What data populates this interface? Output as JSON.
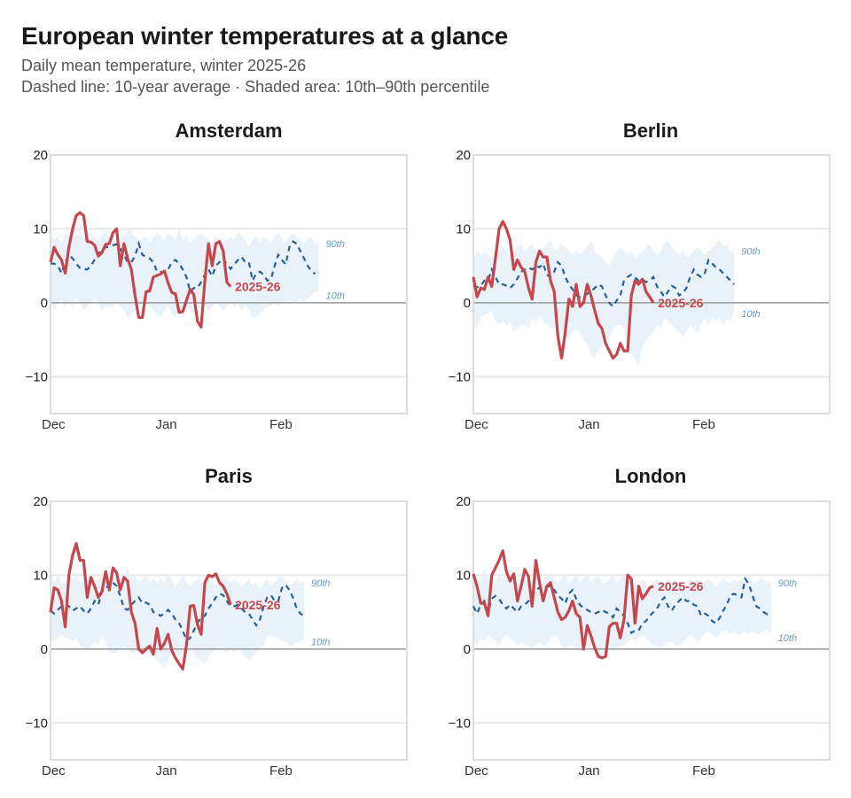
{
  "header": {
    "title": "European winter temperatures at a glance",
    "subtitle": "Daily mean temperature, winter 2025-26",
    "note": "Dashed line: 10-year average · Shaded area: 10th–90th percentile"
  },
  "colors": {
    "current": "#c4474d",
    "average": "#2b5f91",
    "band": "#e9f2f8",
    "band_label": "#6b9bc1",
    "zero_line": "#999999",
    "grid": "#e8e8e8",
    "frame": "#dddddd"
  },
  "chart_data": [
    {
      "type": "line",
      "title": "Amsterdam",
      "xlabel": "",
      "ylabel": "",
      "ylim": [
        -15,
        20
      ],
      "yticks": [
        20,
        10,
        0,
        -10
      ],
      "ytick_labels": [
        "20",
        "10",
        "0",
        "−10"
      ],
      "xticks": [
        {
          "day": 0,
          "label": "Dec"
        },
        {
          "day": 31,
          "label": "Jan"
        },
        {
          "day": 62,
          "label": "Feb"
        }
      ],
      "xlim": [
        0,
        97
      ],
      "band_labels": {
        "upper": "90th",
        "lower": "10th"
      },
      "series_label": "2025-26",
      "current": [
        5.5,
        7.5,
        6.5,
        5.8,
        4,
        7.5,
        10,
        11.8,
        12.2,
        11.8,
        8.3,
        8.2,
        7.8,
        6.3,
        6.8,
        7.9,
        8,
        9.5,
        10,
        5,
        8,
        6,
        4.5,
        1,
        -2,
        -2,
        1.5,
        1.6,
        3.5,
        3.7,
        3.9,
        4.3,
        2.7,
        1.4,
        1.2,
        -1.3,
        -1.2,
        0.3,
        1.8,
        1.1,
        -2.5,
        -3.3,
        3,
        8,
        5,
        8,
        8.3,
        7,
        2.8,
        2.2
      ],
      "average": [
        5.3,
        5.3,
        5,
        4,
        5.5,
        6.5,
        6,
        5.3,
        4.7,
        4.6,
        4.5,
        5,
        5.8,
        6.5,
        7.3,
        7.5,
        7.6,
        7.8,
        7.9,
        7.3,
        6.5,
        5.5,
        5.5,
        6.3,
        8,
        6.5,
        6.2,
        6,
        5.5,
        4.2,
        4.2,
        4.1,
        4.5,
        5.5,
        5.8,
        5.3,
        4.5,
        3.5,
        1.5,
        2,
        2,
        2.8,
        3.8,
        4.5,
        3.6,
        5,
        5.5,
        6,
        5.2,
        4.6,
        5.2,
        5.8,
        6.2,
        5.5,
        5.5,
        3,
        4,
        4.2,
        3.8,
        3,
        3.2,
        5,
        6.5,
        5.8,
        5.2,
        7.5,
        8.3,
        8,
        7,
        6,
        5,
        4.3,
        3.9
      ],
      "p90": [
        9.5,
        8.5,
        9,
        8,
        9,
        9.5,
        10,
        9,
        9.5,
        9,
        8.5,
        9,
        9,
        8.5,
        9,
        9.5,
        9,
        9.5,
        8,
        9,
        9,
        10,
        9.5,
        9,
        8.5,
        8.5,
        9,
        8,
        9,
        9.5,
        9,
        8.5,
        9.5,
        9,
        8.5,
        10,
        8.5,
        9,
        8,
        8.5,
        9,
        9.5,
        9,
        8.5,
        8,
        9,
        8.5,
        8,
        8.5,
        9,
        8.5,
        9.5,
        9,
        8.5,
        7.5,
        8.5,
        9,
        8,
        9,
        8.5,
        8,
        9,
        9.5,
        8.5,
        8,
        9,
        9.5,
        9,
        8.5,
        8,
        8.5,
        9,
        8,
        8
      ],
      "p10": [
        0.5,
        -1,
        0,
        0.5,
        -0.5,
        0,
        -0.5,
        0.5,
        0,
        -1,
        -0.5,
        0,
        0.5,
        0,
        -1,
        -0.5,
        -0.5,
        -0.5,
        0,
        -0.5,
        -1,
        -2,
        -1.5,
        -1,
        -0.5,
        0,
        0,
        -0.5,
        -1,
        -1.5,
        -2,
        -1,
        -0.5,
        -1.5,
        -2,
        -1,
        -0.5,
        -0.5,
        -1,
        -1.5,
        -0.5,
        -1,
        -0.5,
        -1,
        -0.5,
        0,
        -0.5,
        -1,
        -0.5,
        0,
        -0.5,
        0,
        -1,
        -0.5,
        -1,
        -2,
        -2,
        -1.5,
        -1,
        -0.5,
        -0.5,
        0,
        -0.5,
        0,
        0,
        0.5,
        0,
        0,
        0.5,
        0,
        0.5,
        1,
        1.5,
        1.5
      ]
    },
    {
      "type": "line",
      "title": "Berlin",
      "xlabel": "",
      "ylabel": "",
      "ylim": [
        -15,
        20
      ],
      "yticks": [
        20,
        10,
        0,
        -10
      ],
      "ytick_labels": [
        "20",
        "10",
        "0",
        "−10"
      ],
      "xticks": [
        {
          "day": 0,
          "label": "Dec"
        },
        {
          "day": 31,
          "label": "Jan"
        },
        {
          "day": 62,
          "label": "Feb"
        }
      ],
      "xlim": [
        0,
        97
      ],
      "band_labels": {
        "upper": "90th",
        "lower": "10th"
      },
      "series_label": "2025-26",
      "current": [
        3.5,
        0.8,
        2,
        1.8,
        3.5,
        2.2,
        6,
        10,
        11,
        10,
        8.5,
        4.5,
        5.8,
        4.8,
        4.2,
        2,
        0.5,
        5.5,
        7,
        6.2,
        6.2,
        3,
        1.5,
        -4.5,
        -7.5,
        -4,
        0.5,
        -0.5,
        2.5,
        -0.5,
        0,
        2.5,
        1,
        -1,
        -2.8,
        -3.5,
        -5.5,
        -6.5,
        -7.5,
        -7,
        -5.5,
        -6.5,
        -6.5,
        1,
        3,
        2.5,
        3.2,
        1.5,
        0.8,
        0
      ],
      "average": [
        2.3,
        2.1,
        2.3,
        3,
        3,
        4.5,
        3.5,
        2.5,
        2.5,
        2.3,
        2,
        2.5,
        3.3,
        4.2,
        4.5,
        4.8,
        4.5,
        5,
        4.8,
        5.3,
        3.8,
        3.5,
        4.2,
        5.5,
        5,
        3.5,
        2.5,
        1.8,
        1,
        0.8,
        1,
        1.2,
        1.5,
        2,
        2.5,
        2.2,
        1,
        0,
        -0.5,
        0.3,
        1,
        3,
        3.5,
        3.8,
        3.4,
        3,
        3.2,
        2.8,
        3,
        3.5,
        2.2,
        1.5,
        0.8,
        1.5,
        2.3,
        2,
        1,
        1.3,
        2,
        3.5,
        4.5,
        3.8,
        3.5,
        4,
        5.8,
        5.3,
        4.8,
        4.5,
        4,
        3.5,
        3,
        2.5
      ],
      "p90": [
        6,
        7,
        6.5,
        7,
        6.5,
        6,
        7,
        8,
        7.5,
        7,
        6.5,
        7,
        7.5,
        8,
        7,
        7.5,
        8,
        7,
        7.5,
        7,
        8,
        8.5,
        7,
        7.5,
        8,
        7.5,
        7,
        6.5,
        7,
        6.5,
        7,
        7.5,
        8.5,
        7,
        6.5,
        6,
        5.5,
        5,
        6,
        7,
        7.5,
        7,
        6.5,
        7,
        6,
        6.5,
        7,
        7.5,
        8,
        7,
        6.5,
        7,
        8,
        8.5,
        7.5,
        7,
        6.5,
        7,
        6,
        6.5,
        7,
        7.5,
        7,
        6.5,
        7,
        7.5,
        8,
        8.5,
        7.5,
        8,
        7,
        7
      ],
      "p10": [
        -3,
        -3.5,
        -2,
        -1.5,
        -1.5,
        -1,
        -2.5,
        -3,
        -2.5,
        -3,
        -2.5,
        -4,
        -3.5,
        -3,
        -3,
        -3.5,
        -2,
        -2.5,
        -2,
        -2.5,
        -3,
        -3.5,
        -3.5,
        -3,
        -4,
        -4.5,
        -5,
        -4,
        -3.5,
        -4,
        -5,
        -5.5,
        -7,
        -7.5,
        -6.5,
        -6,
        -5,
        -5,
        -3.5,
        -3,
        -3,
        -3.5,
        -7,
        -7,
        -7.5,
        -8.5,
        -6,
        -5,
        -4.5,
        -4,
        -3,
        -3.5,
        -2,
        -2.5,
        -3,
        -3.5,
        -4,
        -4.5,
        -4,
        -3,
        -3.5,
        -4,
        -3,
        -2,
        -3,
        -2,
        -2.5,
        -2,
        -3,
        -2,
        -2.5,
        -1
      ]
    },
    {
      "type": "line",
      "title": "Paris",
      "xlabel": "",
      "ylabel": "",
      "ylim": [
        -15,
        20
      ],
      "yticks": [
        20,
        10,
        0,
        -10
      ],
      "ytick_labels": [
        "20",
        "10",
        "0",
        "−10"
      ],
      "xticks": [
        {
          "day": 0,
          "label": "Dec"
        },
        {
          "day": 31,
          "label": "Jan"
        },
        {
          "day": 62,
          "label": "Feb"
        }
      ],
      "xlim": [
        0,
        97
      ],
      "band_labels": {
        "upper": "90th",
        "lower": "10th"
      },
      "series_label": "2025-26",
      "current": [
        5,
        8.3,
        8,
        6.5,
        3,
        10,
        12.7,
        14.3,
        12,
        12,
        7,
        9.7,
        8.5,
        7,
        7.8,
        10.5,
        8,
        11,
        10.3,
        8,
        9.7,
        9.2,
        5,
        3.5,
        0,
        -0.5,
        0,
        0.4,
        -0.7,
        2.8,
        0,
        0.8,
        2,
        -0.2,
        -1.2,
        -2,
        -2.7,
        0.5,
        5.8,
        5.9,
        3.3,
        2,
        9,
        10,
        9.8,
        10.2,
        9,
        8.5,
        7.5,
        6
      ],
      "average": [
        5.2,
        4.8,
        5.3,
        5.8,
        6,
        5.8,
        5.2,
        5.5,
        5.8,
        5.2,
        4.8,
        5.5,
        6.5,
        6,
        7.8,
        8,
        9,
        9,
        8.5,
        7.2,
        5.5,
        5.3,
        6,
        6.5,
        7,
        6.2,
        6.3,
        6,
        5,
        4.8,
        4.5,
        4.8,
        5.3,
        4.8,
        4,
        3.5,
        2.5,
        1.2,
        1.5,
        2.5,
        3.5,
        4.3,
        4.5,
        5.5,
        6.2,
        7,
        7.5,
        7.3,
        6.5,
        5.8,
        5.8,
        6,
        5.5,
        5,
        4.8,
        4,
        3.2,
        4,
        5.8,
        7,
        7.3,
        6.5,
        6.5,
        8.3,
        8.7,
        8,
        7,
        5.5,
        4.8,
        4.5
      ],
      "p90": [
        11,
        9,
        10,
        9,
        9,
        10,
        9.5,
        10,
        9,
        9.5,
        10,
        9.5,
        9,
        9.5,
        10,
        9,
        10.5,
        10,
        10,
        9.5,
        10,
        11,
        9.5,
        10,
        9,
        9.5,
        10,
        9,
        9.5,
        9,
        9.5,
        9,
        10,
        9.5,
        8.5,
        9,
        10,
        9,
        8.5,
        9,
        9.5,
        9,
        9.5,
        10,
        9,
        8.5,
        9,
        10,
        9.5,
        9,
        9.5,
        9,
        8.5,
        9,
        9.5,
        8.5,
        9,
        8,
        9,
        9.5,
        8.5,
        9,
        9.5,
        10,
        9,
        8.5,
        9,
        9.5,
        9,
        9
      ],
      "p10": [
        1.5,
        1,
        1.5,
        2,
        1.5,
        1.5,
        1,
        1.5,
        0.5,
        0,
        0,
        0.5,
        1,
        0.5,
        1.5,
        1,
        -0.5,
        -0.5,
        -0.5,
        0,
        0.5,
        0,
        -0.5,
        -0.5,
        0,
        -1,
        -0.5,
        -0.5,
        -1,
        -1.5,
        -2,
        -2.5,
        -1.5,
        -0.5,
        -0.5,
        -1,
        -0.5,
        0,
        0.5,
        -0.5,
        -1,
        -1.5,
        -2,
        -1,
        -0.5,
        0,
        0.5,
        0,
        -0.5,
        0,
        -0.5,
        0,
        -0.5,
        -1,
        -1.5,
        -1,
        -0.5,
        0,
        0.5,
        1.5,
        2,
        1.5,
        1.5,
        1,
        1,
        0.5,
        0.5,
        1,
        1,
        1.5
      ]
    },
    {
      "type": "line",
      "title": "London",
      "xlabel": "",
      "ylabel": "",
      "ylim": [
        -15,
        20
      ],
      "yticks": [
        20,
        10,
        0,
        -10
      ],
      "ytick_labels": [
        "20",
        "10",
        "0",
        "−10"
      ],
      "xticks": [
        {
          "day": 0,
          "label": "Dec"
        },
        {
          "day": 31,
          "label": "Jan"
        },
        {
          "day": 62,
          "label": "Feb"
        }
      ],
      "xlim": [
        0,
        97
      ],
      "band_labels": {
        "upper": "90th",
        "lower": "10th"
      },
      "series_label": "2025-26",
      "current": [
        10.2,
        8.5,
        6.2,
        6.2,
        4.5,
        10,
        11,
        12,
        13.3,
        10.5,
        9.2,
        10.2,
        6.5,
        8.5,
        10.8,
        9.8,
        5.8,
        12,
        9,
        6.5,
        8.5,
        9,
        7,
        5,
        4,
        4.3,
        5.2,
        6.5,
        4.8,
        4.3,
        0,
        3.2,
        1.8,
        0.2,
        -1,
        -1.2,
        -1,
        3,
        3.5,
        3.5,
        1.5,
        4,
        10,
        9.5,
        3.5,
        8.5,
        6.8,
        7.5,
        8.3,
        8.5
      ],
      "average": [
        5.8,
        4.8,
        6,
        6.5,
        5,
        6.8,
        7.2,
        6.8,
        6,
        5.5,
        6,
        5.5,
        5,
        5.8,
        6,
        6.5,
        7.3,
        8,
        8.3,
        8,
        8.5,
        8.5,
        8,
        7.3,
        6.8,
        6.2,
        7.5,
        8,
        6.8,
        6,
        5.5,
        5.3,
        5,
        4.8,
        5,
        5.3,
        5,
        4.8,
        4.3,
        5.5,
        5,
        4.5,
        3.5,
        2.2,
        2.5,
        2.5,
        3.5,
        3.8,
        4.5,
        5,
        5.5,
        6.5,
        7,
        5.8,
        5.2,
        6,
        6.5,
        7,
        6.5,
        6.5,
        6,
        5.8,
        4.5,
        4.8,
        4.5,
        3.8,
        3.5,
        4.2,
        5.2,
        6,
        7.3,
        7.5,
        7.2,
        7,
        9.5,
        8.8,
        7.2,
        5.8,
        5.5,
        5,
        4.7,
        5
      ],
      "p90": [
        9,
        9.5,
        9,
        11,
        9.5,
        10,
        9,
        10,
        9.5,
        10,
        11,
        10,
        9,
        9.5,
        10,
        9,
        9.5,
        10,
        9,
        9.5,
        10,
        10,
        9.5,
        9,
        9.5,
        10,
        9,
        9.5,
        10,
        9,
        9.5,
        10,
        9,
        9.5,
        10,
        9,
        9,
        9.5,
        10,
        9,
        9.5,
        10,
        9,
        9.5,
        9,
        8.5,
        9.5,
        9,
        8,
        9,
        9.5,
        9,
        9,
        9.5,
        9,
        9.5,
        9,
        9,
        8.5,
        9.5,
        9,
        9.5,
        9,
        9,
        9.5,
        9,
        8.5,
        9,
        9.5,
        9,
        9,
        9.5,
        9,
        9.5,
        9,
        10,
        9,
        9,
        9.5,
        9.5,
        9,
        9
      ],
      "p10": [
        1,
        0.5,
        1.5,
        1,
        2,
        1.5,
        1,
        0.5,
        1.5,
        2,
        1.5,
        1,
        0.5,
        1,
        0.5,
        0.5,
        0,
        0.5,
        1,
        0.5,
        0.5,
        1.5,
        2,
        1.5,
        0.5,
        0,
        0.5,
        0.5,
        0,
        -0.5,
        0,
        0.5,
        0.5,
        0,
        -0.5,
        0,
        0.5,
        0.5,
        -0.5,
        0,
        0.5,
        0.5,
        1,
        1.5,
        1,
        1.5,
        2,
        1.5,
        1,
        0.5,
        0.5,
        0,
        0.5,
        1,
        1,
        0.5,
        0.5,
        1,
        1.5,
        2,
        1.5,
        1,
        1.5,
        2,
        2.5,
        2,
        1.5,
        2,
        2.5,
        2.5,
        2,
        2.5,
        2,
        2,
        2.5,
        2,
        2.5,
        2,
        2,
        2.5,
        2.5,
        2
      ]
    }
  ]
}
